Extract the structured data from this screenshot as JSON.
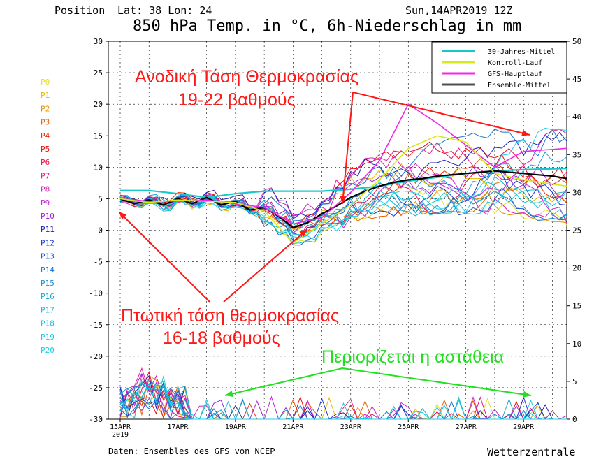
{
  "header": {
    "position_label": "Position",
    "coords": "Lat: 38 Lon: 24",
    "run": "Sun,14APR2019 12Z",
    "title": "850 hPa Temp. in °C, 6h-Niederschlag in mm"
  },
  "footer": {
    "source": "Daten: Ensembles des GFS von NCEP",
    "brand": "Wetterzentrale"
  },
  "legend": {
    "items": [
      {
        "label": "30-Jahres-Mittel",
        "color": "#18c8c8"
      },
      {
        "label": "Kontroll-Lauf",
        "color": "#d8e818"
      },
      {
        "label": "GFS-Hauptlauf",
        "color": "#f028e8"
      },
      {
        "label": "Ensemble-Mittel",
        "color": "#505050"
      }
    ]
  },
  "members": [
    {
      "label": "P0",
      "color": "#e0e020"
    },
    {
      "label": "P1",
      "color": "#e8b800"
    },
    {
      "label": "P2",
      "color": "#e89000"
    },
    {
      "label": "P3",
      "color": "#e86000"
    },
    {
      "label": "P4",
      "color": "#e83000"
    },
    {
      "label": "P5",
      "color": "#e81010"
    },
    {
      "label": "P6",
      "color": "#e81050"
    },
    {
      "label": "P7",
      "color": "#e01888"
    },
    {
      "label": "P8",
      "color": "#d820b8"
    },
    {
      "label": "P9",
      "color": "#c020d8"
    },
    {
      "label": "P10",
      "color": "#a020d8"
    },
    {
      "label": "P11",
      "color": "#2020c0"
    },
    {
      "label": "P12",
      "color": "#1838c8"
    },
    {
      "label": "P13",
      "color": "#1858d0"
    },
    {
      "label": "P14",
      "color": "#1878d0"
    },
    {
      "label": "P15",
      "color": "#1890d0"
    },
    {
      "label": "P16",
      "color": "#18a8d0"
    },
    {
      "label": "P17",
      "color": "#18b8d0"
    },
    {
      "label": "P18",
      "color": "#18c0d8"
    },
    {
      "label": "P19",
      "color": "#18c8e0"
    },
    {
      "label": "P20",
      "color": "#18d0e8"
    }
  ],
  "annotations": {
    "rise_1": "Ανοδική Τάση Θερμοκρασίας",
    "rise_2": "19-22 βαθμούς",
    "fall_1": "Πτωτική τάση θερμοκρασίας",
    "fall_2": "16-18 βαθμούς",
    "spread": "Περιορίζεται η αστάθεια",
    "arrow_red": "#ff1818",
    "arrow_green": "#20e020"
  },
  "chart_data": {
    "type": "line",
    "x_tick_labels": [
      "15APR",
      "17APR",
      "19APR",
      "21APR",
      "23APR",
      "25APR",
      "27APR",
      "29APR"
    ],
    "x_tick_year": "2019",
    "x_range_days": [
      0,
      15.5
    ],
    "y_left": {
      "ticks": [
        30,
        25,
        20,
        15,
        10,
        5,
        0,
        -5,
        -10,
        -15,
        -20,
        -25,
        -30
      ],
      "range": [
        -30,
        30
      ],
      "unit": "°C"
    },
    "y_right": {
      "ticks": [
        50,
        45,
        40,
        35,
        30,
        25,
        20,
        15,
        10,
        5,
        0
      ],
      "range": [
        0,
        50
      ],
      "unit": "mm"
    },
    "grid": true,
    "legend_position": "top-right",
    "series": [
      {
        "name": "30-Jahres-Mittel",
        "x": [
          0,
          1,
          2,
          3,
          4,
          5,
          6,
          7,
          8,
          9,
          10,
          11,
          12,
          13,
          14,
          15.5
        ],
        "values": [
          6.3,
          6.3,
          5.8,
          5.2,
          5.8,
          6.2,
          6.2,
          6.2,
          6.5,
          7.0,
          7.8,
          8.4,
          9.0,
          9.4,
          9.6,
          9.8
        ]
      },
      {
        "name": "Ensemble-Mittel",
        "x": [
          0,
          0.5,
          1,
          1.5,
          2,
          2.5,
          3,
          3.5,
          4,
          4.5,
          5,
          5.5,
          6,
          6.5,
          7,
          7.5,
          8,
          8.5,
          9,
          9.5,
          10,
          10.5,
          11,
          11.5,
          12,
          12.5,
          13,
          13.5,
          14,
          14.5,
          15,
          15.5
        ],
        "values": [
          5.0,
          4.2,
          4.8,
          4.0,
          5.0,
          4.2,
          5.2,
          4.0,
          4.6,
          3.2,
          3.6,
          2.2,
          0.4,
          1.2,
          2.6,
          3.8,
          5.2,
          6.2,
          7.0,
          7.6,
          8.0,
          8.2,
          8.6,
          8.8,
          9.0,
          9.2,
          9.4,
          9.2,
          9.0,
          8.8,
          8.6,
          8.2
        ]
      },
      {
        "name": "GFS-Hauptlauf",
        "x": [
          0,
          1,
          2,
          3,
          4,
          5,
          6,
          7,
          8,
          9,
          10,
          11,
          12,
          13,
          14,
          15.5
        ],
        "values": [
          5.0,
          4.6,
          4.6,
          4.8,
          4.2,
          3.6,
          1.0,
          2.0,
          6.0,
          11.0,
          20.0,
          17.0,
          13.5,
          10.0,
          12.5,
          13.0
        ]
      },
      {
        "name": "Kontroll-Lauf",
        "x": [
          0,
          1,
          2,
          3,
          4,
          5,
          6,
          7,
          8,
          9,
          10,
          11,
          12,
          13,
          14,
          15.5
        ],
        "values": [
          5.0,
          4.4,
          4.8,
          4.6,
          4.4,
          3.0,
          -2.0,
          1.0,
          4.0,
          8.0,
          13.0,
          15.0,
          14.0,
          9.0,
          8.0,
          7.0
        ]
      }
    ],
    "precip_note": "6h precipitation on right axis"
  }
}
